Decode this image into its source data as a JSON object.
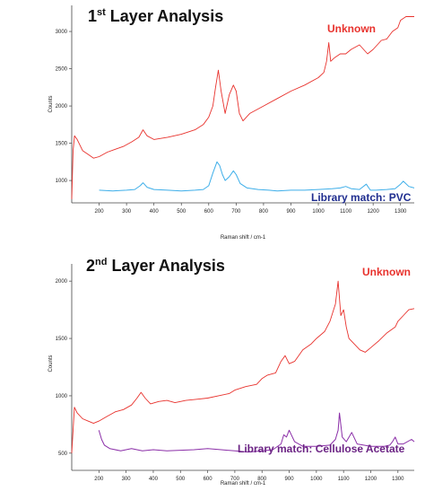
{
  "chart_data": [
    {
      "type": "line",
      "title_main": "1",
      "title_sup": "st",
      "title_rest": " Layer Analysis",
      "xlabel": "Raman shift / cm-1",
      "ylabel": "Counts",
      "xlim": [
        100,
        1350
      ],
      "ylim": [
        700,
        3350
      ],
      "x_ticks": [
        200,
        300,
        400,
        500,
        600,
        700,
        800,
        900,
        1000,
        1100,
        1200,
        1300
      ],
      "y_ticks": [
        1000,
        1500,
        2000,
        2500,
        3000
      ],
      "series": [
        {
          "name": "Unknown",
          "color": "#e8322d",
          "x": [
            100,
            105,
            110,
            120,
            140,
            160,
            180,
            200,
            230,
            260,
            290,
            320,
            345,
            360,
            375,
            400,
            450,
            500,
            550,
            580,
            600,
            615,
            625,
            635,
            645,
            660,
            675,
            690,
            700,
            712,
            725,
            750,
            800,
            850,
            900,
            950,
            1000,
            1020,
            1030,
            1038,
            1045,
            1060,
            1080,
            1100,
            1120,
            1150,
            1180,
            1200,
            1230,
            1250,
            1270,
            1290,
            1300,
            1320,
            1350
          ],
          "y": [
            750,
            1400,
            1600,
            1550,
            1400,
            1350,
            1300,
            1320,
            1380,
            1420,
            1460,
            1520,
            1580,
            1680,
            1600,
            1550,
            1580,
            1620,
            1680,
            1750,
            1850,
            2000,
            2250,
            2480,
            2200,
            1900,
            2150,
            2280,
            2200,
            1900,
            1800,
            1900,
            2000,
            2100,
            2200,
            2280,
            2380,
            2450,
            2600,
            2850,
            2600,
            2650,
            2700,
            2700,
            2760,
            2820,
            2700,
            2760,
            2880,
            2900,
            3000,
            3050,
            3150,
            3200,
            3200
          ]
        },
        {
          "name": "Library match: PVC",
          "color": "#3daee9",
          "x": [
            200,
            250,
            300,
            330,
            350,
            360,
            375,
            400,
            450,
            500,
            550,
            580,
            600,
            615,
            630,
            640,
            650,
            660,
            675,
            690,
            700,
            715,
            740,
            780,
            820,
            850,
            900,
            950,
            1000,
            1050,
            1080,
            1100,
            1120,
            1150,
            1175,
            1190,
            1210,
            1250,
            1280,
            1300,
            1310,
            1330,
            1350
          ],
          "y": [
            870,
            860,
            870,
            880,
            930,
            970,
            910,
            880,
            870,
            860,
            870,
            880,
            930,
            1100,
            1250,
            1200,
            1080,
            1000,
            1050,
            1130,
            1080,
            960,
            900,
            880,
            870,
            860,
            870,
            870,
            880,
            890,
            900,
            920,
            890,
            880,
            950,
            870,
            870,
            880,
            890,
            950,
            990,
            920,
            900
          ]
        }
      ],
      "labels": {
        "unknown": "Unknown",
        "library": "Library match: PVC",
        "library_color": "#1f2d8f",
        "unknown_color": "#e8322d"
      }
    },
    {
      "type": "line",
      "title_main": "2",
      "title_sup": "nd",
      "title_rest": " Layer Analysis",
      "xlabel": "Raman shift / cm-1",
      "ylabel": "Counts",
      "xlim": [
        100,
        1360
      ],
      "ylim": [
        350,
        2150
      ],
      "x_ticks": [
        200,
        300,
        400,
        500,
        600,
        700,
        800,
        900,
        1000,
        1100,
        1200,
        1300
      ],
      "y_ticks": [
        500,
        1000,
        1500,
        2000
      ],
      "series": [
        {
          "name": "Unknown",
          "color": "#e8322d",
          "x": [
            100,
            110,
            120,
            140,
            160,
            180,
            200,
            230,
            260,
            290,
            320,
            340,
            355,
            370,
            390,
            420,
            450,
            480,
            520,
            560,
            600,
            640,
            680,
            700,
            740,
            780,
            800,
            820,
            850,
            870,
            885,
            900,
            920,
            950,
            980,
            1000,
            1030,
            1050,
            1070,
            1080,
            1090,
            1100,
            1110,
            1120,
            1140,
            1160,
            1180,
            1200,
            1230,
            1260,
            1290,
            1300,
            1320,
            1340,
            1360
          ],
          "y": [
            500,
            900,
            850,
            800,
            780,
            760,
            780,
            820,
            860,
            880,
            920,
            980,
            1030,
            980,
            930,
            950,
            960,
            940,
            960,
            970,
            980,
            1000,
            1020,
            1050,
            1080,
            1100,
            1150,
            1180,
            1200,
            1300,
            1350,
            1280,
            1300,
            1400,
            1450,
            1500,
            1560,
            1650,
            1800,
            2000,
            1700,
            1750,
            1600,
            1500,
            1450,
            1400,
            1380,
            1420,
            1480,
            1550,
            1600,
            1650,
            1700,
            1750,
            1760
          ]
        },
        {
          "name": "Library match: Cellulose Acetate",
          "color": "#8b2fa8",
          "x": [
            200,
            210,
            220,
            240,
            280,
            320,
            360,
            400,
            450,
            500,
            550,
            600,
            650,
            700,
            750,
            800,
            840,
            870,
            880,
            890,
            900,
            920,
            950,
            1000,
            1050,
            1070,
            1080,
            1085,
            1095,
            1110,
            1130,
            1150,
            1200,
            1250,
            1270,
            1280,
            1290,
            1300,
            1320,
            1350,
            1360
          ],
          "y": [
            700,
            620,
            570,
            540,
            520,
            540,
            520,
            530,
            520,
            525,
            530,
            540,
            530,
            520,
            510,
            520,
            530,
            580,
            660,
            640,
            700,
            600,
            560,
            560,
            570,
            620,
            700,
            850,
            640,
            600,
            680,
            580,
            560,
            560,
            570,
            600,
            640,
            580,
            580,
            620,
            600
          ]
        }
      ],
      "labels": {
        "unknown": "Unknown",
        "library": "Library match: Cellulose Acetate",
        "library_color": "#6b2384",
        "unknown_color": "#e8322d"
      }
    }
  ]
}
